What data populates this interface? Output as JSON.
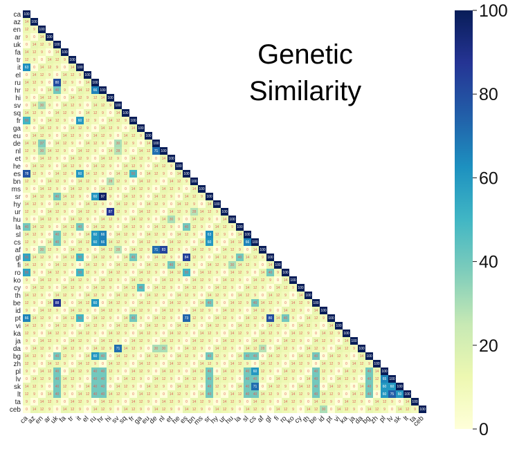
{
  "chart_data": {
    "type": "heatmap",
    "title_lines": [
      "Genetic",
      "Similarity"
    ],
    "labels": [
      "ca",
      "az",
      "en",
      "ar",
      "uk",
      "fa",
      "tr",
      "it",
      "el",
      "ru",
      "hr",
      "hi",
      "sv",
      "sq",
      "fr",
      "ga",
      "eu",
      "de",
      "nl",
      "et",
      "he",
      "es",
      "bn",
      "ms",
      "sr",
      "hy",
      "ur",
      "hu",
      "la",
      "sl",
      "cs",
      "af",
      "gl",
      "fi",
      "ro",
      "ko",
      "cy",
      "th",
      "be",
      "id",
      "pt",
      "vi",
      "ka",
      "ja",
      "da",
      "bg",
      "zh",
      "pl",
      "lv",
      "sk",
      "lt",
      "ta",
      "ceb"
    ],
    "triangle": "lower",
    "diagonal_value": 100,
    "vmin": 0,
    "vmax": 100,
    "colorbar_ticks": [
      "0",
      "20",
      "40",
      "60",
      "80",
      "100"
    ],
    "colormap": [
      "#ffffd9",
      "#edf8b1",
      "#c7e9b4",
      "#7fcdbb",
      "#41b6c4",
      "#1d91c0",
      "#225ea8",
      "#253494",
      "#081d58"
    ],
    "default_values": [
      0,
      9,
      12,
      14
    ],
    "cells": [
      {
        "row": "it",
        "col": "ca",
        "value": 63
      },
      {
        "row": "ru",
        "col": "uk",
        "value": 80
      },
      {
        "row": "hr",
        "col": "uk",
        "value": 40
      },
      {
        "row": "hr",
        "col": "ru",
        "value": 66
      },
      {
        "row": "hi",
        "col": "ru",
        "value": 12
      },
      {
        "row": "sv",
        "col": "en",
        "value": 30
      },
      {
        "row": "fr",
        "col": "ca",
        "value": 50
      },
      {
        "row": "fr",
        "col": "it",
        "value": 60
      },
      {
        "row": "de",
        "col": "en",
        "value": 37
      },
      {
        "row": "de",
        "col": "sv",
        "value": 30
      },
      {
        "row": "nl",
        "col": "en",
        "value": 30
      },
      {
        "row": "nl",
        "col": "sv",
        "value": 28
      },
      {
        "row": "nl",
        "col": "de",
        "value": 71
      },
      {
        "row": "es",
        "col": "ca",
        "value": 78
      },
      {
        "row": "es",
        "col": "it",
        "value": 60
      },
      {
        "row": "es",
        "col": "fr",
        "value": 50
      },
      {
        "row": "bn",
        "col": "hi",
        "value": 28
      },
      {
        "row": "sr",
        "col": "uk",
        "value": 40
      },
      {
        "row": "sr",
        "col": "ru",
        "value": 60
      },
      {
        "row": "sr",
        "col": "hr",
        "value": 97
      },
      {
        "row": "ur",
        "col": "hi",
        "value": 87
      },
      {
        "row": "ur",
        "col": "bn",
        "value": 28
      },
      {
        "row": "hu",
        "col": "et",
        "value": 30
      },
      {
        "row": "la",
        "col": "ca",
        "value": 40
      },
      {
        "row": "la",
        "col": "it",
        "value": 40
      },
      {
        "row": "la",
        "col": "es",
        "value": 40
      },
      {
        "row": "sl",
        "col": "uk",
        "value": 40
      },
      {
        "row": "sl",
        "col": "ru",
        "value": 60
      },
      {
        "row": "sl",
        "col": "hr",
        "value": 66
      },
      {
        "row": "sl",
        "col": "sr",
        "value": 63
      },
      {
        "row": "cs",
        "col": "uk",
        "value": 40
      },
      {
        "row": "cs",
        "col": "ru",
        "value": 60
      },
      {
        "row": "cs",
        "col": "hr",
        "value": 66
      },
      {
        "row": "cs",
        "col": "sr",
        "value": 60
      },
      {
        "row": "cs",
        "col": "sl",
        "value": 66
      },
      {
        "row": "af",
        "col": "en",
        "value": 30
      },
      {
        "row": "af",
        "col": "de",
        "value": 71
      },
      {
        "row": "af",
        "col": "nl",
        "value": 83
      },
      {
        "row": "af",
        "col": "sv",
        "value": 28
      },
      {
        "row": "gl",
        "col": "ca",
        "value": 56
      },
      {
        "row": "gl",
        "col": "it",
        "value": 50
      },
      {
        "row": "gl",
        "col": "es",
        "value": 84
      },
      {
        "row": "gl",
        "col": "fr",
        "value": 40
      },
      {
        "row": "gl",
        "col": "la",
        "value": 40
      },
      {
        "row": "fi",
        "col": "et",
        "value": 40
      },
      {
        "row": "fi",
        "col": "hu",
        "value": 30
      },
      {
        "row": "ro",
        "col": "ca",
        "value": 56
      },
      {
        "row": "ro",
        "col": "it",
        "value": 50
      },
      {
        "row": "ro",
        "col": "es",
        "value": 50
      },
      {
        "row": "ro",
        "col": "gl",
        "value": 40
      },
      {
        "row": "cy",
        "col": "ga",
        "value": 46
      },
      {
        "row": "be",
        "col": "uk",
        "value": 88
      },
      {
        "row": "be",
        "col": "ru",
        "value": 60
      },
      {
        "row": "be",
        "col": "sr",
        "value": 40
      },
      {
        "row": "be",
        "col": "cs",
        "value": 40
      },
      {
        "row": "pt",
        "col": "ca",
        "value": 66
      },
      {
        "row": "pt",
        "col": "es",
        "value": 73
      },
      {
        "row": "pt",
        "col": "gl",
        "value": 80
      },
      {
        "row": "pt",
        "col": "it",
        "value": 50
      },
      {
        "row": "pt",
        "col": "fr",
        "value": 40
      },
      {
        "row": "pt",
        "col": "ro",
        "value": 40
      },
      {
        "row": "da",
        "col": "sv",
        "value": 71
      },
      {
        "row": "da",
        "col": "de",
        "value": 30
      },
      {
        "row": "da",
        "col": "nl",
        "value": 30
      },
      {
        "row": "da",
        "col": "af",
        "value": 28
      },
      {
        "row": "bg",
        "col": "uk",
        "value": 40
      },
      {
        "row": "bg",
        "col": "ru",
        "value": 60
      },
      {
        "row": "bg",
        "col": "hr",
        "value": 40
      },
      {
        "row": "bg",
        "col": "sr",
        "value": 40
      },
      {
        "row": "bg",
        "col": "sl",
        "value": 40
      },
      {
        "row": "bg",
        "col": "cs",
        "value": 40
      },
      {
        "row": "bg",
        "col": "be",
        "value": 40
      },
      {
        "row": "pl",
        "col": "uk",
        "value": 40
      },
      {
        "row": "pl",
        "col": "ru",
        "value": 40
      },
      {
        "row": "pl",
        "col": "hr",
        "value": 40
      },
      {
        "row": "pl",
        "col": "sr",
        "value": 40
      },
      {
        "row": "pl",
        "col": "sl",
        "value": 40
      },
      {
        "row": "pl",
        "col": "cs",
        "value": 60
      },
      {
        "row": "pl",
        "col": "be",
        "value": 40
      },
      {
        "row": "pl",
        "col": "bg",
        "value": 40
      },
      {
        "row": "lv",
        "col": "uk",
        "value": 40
      },
      {
        "row": "lv",
        "col": "ru",
        "value": 40
      },
      {
        "row": "lv",
        "col": "hr",
        "value": 40
      },
      {
        "row": "lv",
        "col": "sr",
        "value": 40
      },
      {
        "row": "lv",
        "col": "sl",
        "value": 40
      },
      {
        "row": "lv",
        "col": "cs",
        "value": 40
      },
      {
        "row": "lv",
        "col": "be",
        "value": 40
      },
      {
        "row": "lv",
        "col": "bg",
        "value": 40
      },
      {
        "row": "lv",
        "col": "pl",
        "value": 65
      },
      {
        "row": "sk",
        "col": "uk",
        "value": 40
      },
      {
        "row": "sk",
        "col": "ru",
        "value": 40
      },
      {
        "row": "sk",
        "col": "hr",
        "value": 40
      },
      {
        "row": "sk",
        "col": "sr",
        "value": 40
      },
      {
        "row": "sk",
        "col": "sl",
        "value": 40
      },
      {
        "row": "sk",
        "col": "cs",
        "value": 71
      },
      {
        "row": "sk",
        "col": "be",
        "value": 40
      },
      {
        "row": "sk",
        "col": "bg",
        "value": 40
      },
      {
        "row": "sk",
        "col": "pl",
        "value": 60
      },
      {
        "row": "sk",
        "col": "lv",
        "value": 60
      },
      {
        "row": "lt",
        "col": "uk",
        "value": 40
      },
      {
        "row": "lt",
        "col": "ru",
        "value": 40
      },
      {
        "row": "lt",
        "col": "hr",
        "value": 40
      },
      {
        "row": "lt",
        "col": "sr",
        "value": 40
      },
      {
        "row": "lt",
        "col": "sl",
        "value": 40
      },
      {
        "row": "lt",
        "col": "cs",
        "value": 40
      },
      {
        "row": "lt",
        "col": "be",
        "value": 40
      },
      {
        "row": "lt",
        "col": "bg",
        "value": 40
      },
      {
        "row": "lt",
        "col": "pl",
        "value": 60
      },
      {
        "row": "lt",
        "col": "lv",
        "value": 75
      },
      {
        "row": "lt",
        "col": "sk",
        "value": 60
      },
      {
        "row": "ceb",
        "col": "id",
        "value": 30
      }
    ]
  }
}
